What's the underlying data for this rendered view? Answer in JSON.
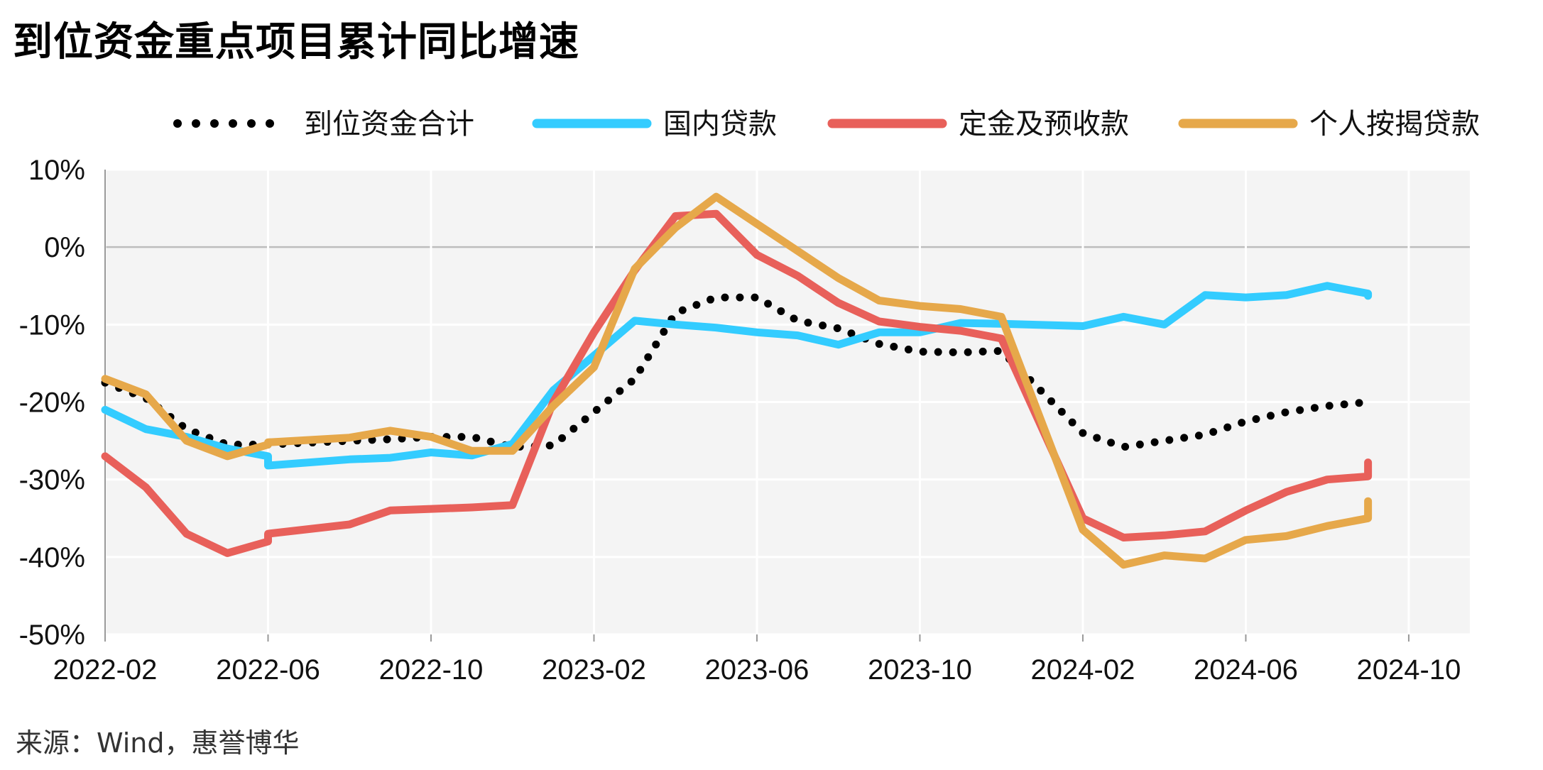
{
  "title": "到位资金重点项目累计同比增速",
  "source": "来源：Wind，惠誉博华",
  "chart_data": {
    "type": "line",
    "title": "到位资金重点项目累计同比增速",
    "xlabel": "",
    "ylabel": "",
    "ylim": [
      -50,
      10
    ],
    "yticks": [
      "10%",
      "0%",
      "-10%",
      "-20%",
      "-30%",
      "-40%",
      "-50%"
    ],
    "ytick_values": [
      10,
      0,
      -10,
      -20,
      -30,
      -40,
      -50
    ],
    "xticks": [
      "2022-02",
      "2022-06",
      "2022-10",
      "2023-02",
      "2023-06",
      "2023-10",
      "2024-02",
      "2024-06",
      "2024-10"
    ],
    "xtick_months": [
      0,
      4,
      8,
      12,
      16,
      20,
      24,
      28,
      32
    ],
    "grid": true,
    "legend_position": "top",
    "series": [
      {
        "name": "到位资金合计",
        "color": "#000000",
        "style": "dotted",
        "x": [
          0,
          1,
          2,
          3,
          4,
          4,
          6,
          7,
          8,
          9,
          10,
          11,
          13,
          14,
          15,
          16,
          17,
          18,
          19,
          20,
          21,
          22,
          24,
          25,
          26,
          27,
          28,
          29,
          30,
          31,
          31
        ],
        "values": [
          -17.5,
          -19.5,
          -23.5,
          -25.5,
          -25.5,
          -25.5,
          -25.0,
          -24.8,
          -24.5,
          -24.5,
          -25.8,
          -25.6,
          -17.0,
          -8.5,
          -6.5,
          -6.5,
          -9.5,
          -10.5,
          -12.5,
          -13.5,
          -13.6,
          -13.4,
          -24.0,
          -25.8,
          -25.0,
          -24.2,
          -22.5,
          -21.3,
          -20.5,
          -20.0,
          -19.3
        ]
      },
      {
        "name": "国内贷款",
        "color": "#33CCFF",
        "style": "solid",
        "x": [
          0,
          1,
          2,
          3,
          4,
          4,
          6,
          7,
          8,
          9,
          10,
          11,
          13,
          14,
          15,
          16,
          17,
          18,
          19,
          20,
          21,
          22,
          24,
          25,
          26,
          27,
          28,
          29,
          30,
          31,
          31
        ],
        "values": [
          -21.0,
          -23.5,
          -24.5,
          -26.0,
          -27.0,
          -28.2,
          -27.4,
          -27.2,
          -26.5,
          -26.9,
          -25.4,
          -18.5,
          -9.5,
          -10.0,
          -10.4,
          -11.0,
          -11.4,
          -12.6,
          -11.0,
          -11.0,
          -9.8,
          -9.9,
          -10.2,
          -9.0,
          -10.0,
          -6.2,
          -6.5,
          -6.2,
          -5.0,
          -6.0,
          -6.3
        ]
      },
      {
        "name": "定金及预收款",
        "color": "#E8605A",
        "style": "solid",
        "x": [
          0,
          1,
          2,
          3,
          4,
          4,
          6,
          7,
          8,
          9,
          10,
          11,
          12,
          13,
          14,
          15,
          16,
          17,
          18,
          19,
          20,
          21,
          22,
          24,
          25,
          26,
          27,
          28,
          29,
          30,
          31,
          31
        ],
        "values": [
          -27.0,
          -31.0,
          -37.0,
          -39.5,
          -38.0,
          -37.0,
          -35.8,
          -34.0,
          -33.8,
          -33.6,
          -33.3,
          -20.0,
          -11.0,
          -3.0,
          4.0,
          4.3,
          -1.0,
          -3.7,
          -7.2,
          -9.6,
          -10.3,
          -10.8,
          -11.8,
          -35.0,
          -37.5,
          -37.2,
          -36.7,
          -34.0,
          -31.6,
          -30.0,
          -29.6,
          -27.8
        ]
      },
      {
        "name": "个人按揭贷款",
        "color": "#E6A84A",
        "style": "solid",
        "x": [
          0,
          1,
          2,
          3,
          4,
          4,
          6,
          7,
          8,
          9,
          10,
          11,
          12,
          13,
          14,
          15,
          16,
          17,
          18,
          19,
          20,
          21,
          22,
          24,
          25,
          26,
          27,
          28,
          29,
          30,
          31,
          31
        ],
        "values": [
          -17.0,
          -19.0,
          -25.0,
          -27.0,
          -25.5,
          -25.2,
          -24.6,
          -23.7,
          -24.5,
          -26.3,
          -26.3,
          -20.5,
          -15.5,
          -2.8,
          2.5,
          6.5,
          3.0,
          -0.5,
          -4.0,
          -6.9,
          -7.6,
          -8.0,
          -9.0,
          -36.5,
          -41.0,
          -39.8,
          -40.2,
          -37.8,
          -37.3,
          -36.0,
          -35.0,
          -32.8
        ]
      }
    ]
  }
}
